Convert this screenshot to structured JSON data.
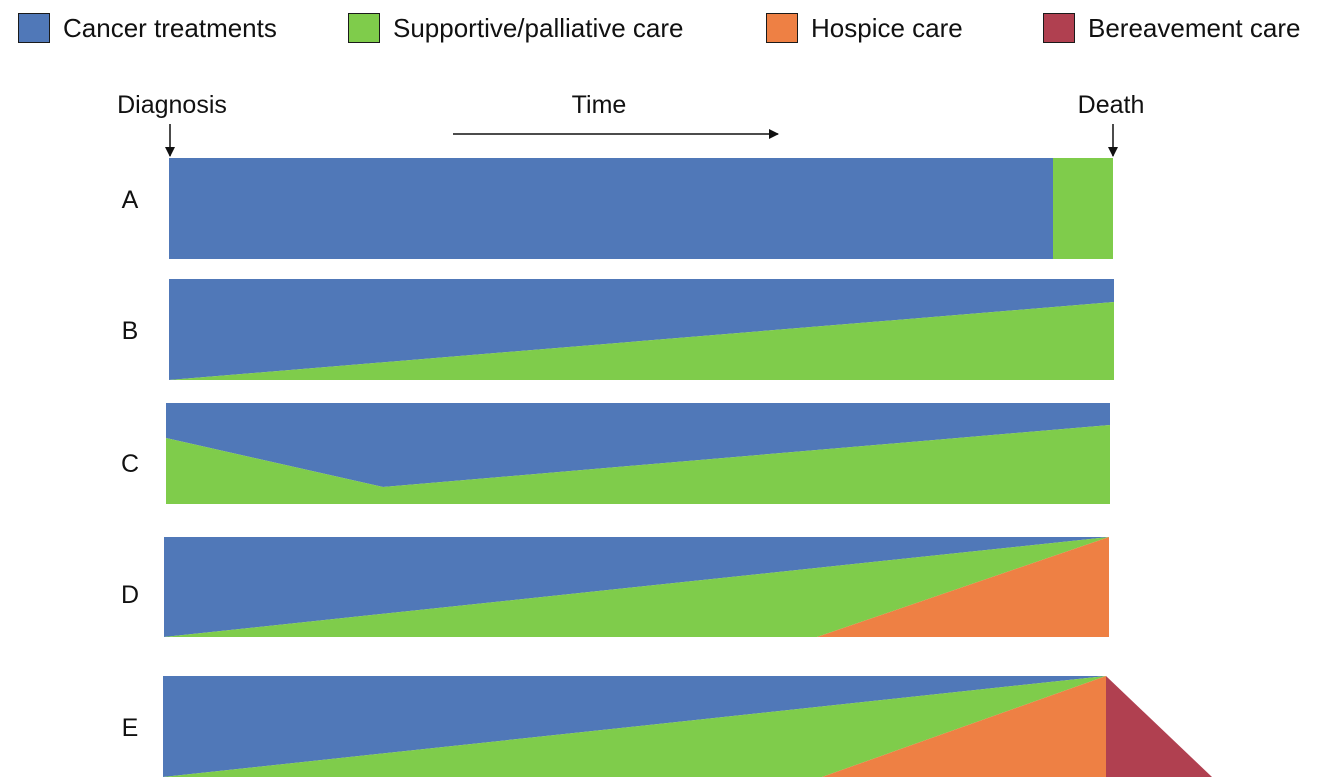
{
  "legend": [
    {
      "key": "treatment",
      "label": "Cancer treatments",
      "color": "#5078b8"
    },
    {
      "key": "palliative",
      "label": "Supportive/palliative care",
      "color": "#7fcc4b"
    },
    {
      "key": "hospice",
      "label": "Hospice care",
      "color": "#ee8044"
    },
    {
      "key": "bereavement",
      "label": "Bereavement care",
      "color": "#b04050"
    }
  ],
  "timeline": {
    "start_label": "Diagnosis",
    "middle_label": "Time",
    "end_label": "Death"
  },
  "rows": [
    {
      "label": "A"
    },
    {
      "label": "B"
    },
    {
      "label": "C"
    },
    {
      "label": "D"
    },
    {
      "label": "E"
    }
  ]
}
